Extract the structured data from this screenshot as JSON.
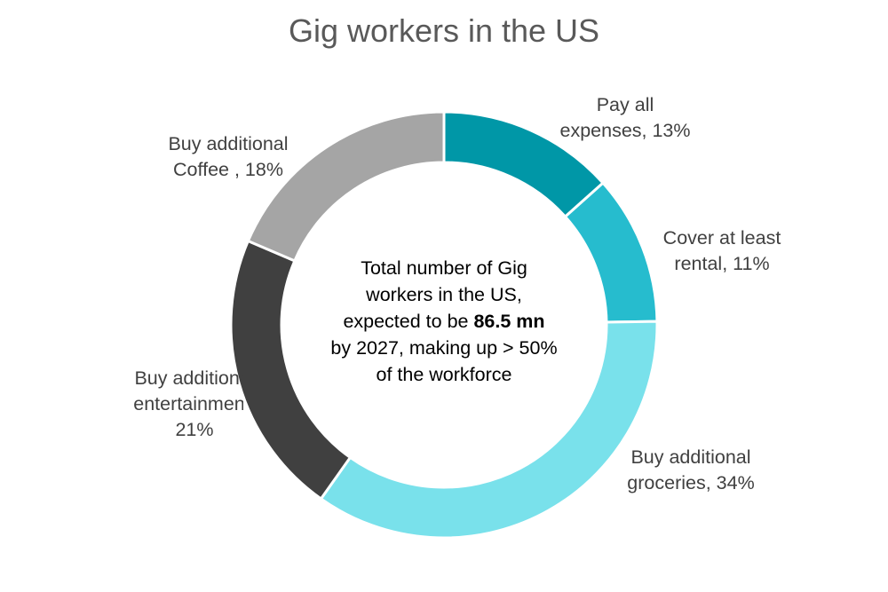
{
  "chart_data": {
    "type": "pie",
    "title": "Gig workers in the US",
    "categories": [
      "Pay all expenses",
      "Cover at least rental",
      "Buy additional groceries",
      "Buy additional entertainment",
      "Buy additional Coffee "
    ],
    "values": [
      13,
      11,
      34,
      21,
      18
    ],
    "colors": [
      "#0097A7",
      "#26BCCE",
      "#79E1EB",
      "#404040",
      "#A5A5A5"
    ],
    "labels": [
      {
        "line1": "Pay all",
        "line2": "expenses, 13%"
      },
      {
        "line1": "Cover at least",
        "line2": "rental, 11%"
      },
      {
        "line1": "Buy additional",
        "line2": "groceries, 34%"
      },
      {
        "line1": "Buy additional",
        "line2": "entertainment,",
        "line3": "21%"
      },
      {
        "line1": "Buy additional",
        "line2": "Coffee , 18%"
      }
    ],
    "legend": "none",
    "center_text": {
      "line1": "Total number of Gig",
      "line2": "workers in the US,",
      "line3_prefix": "expected to be ",
      "line3_bold": "86.5 mn",
      "line4": "by 2027, making up > 50%",
      "line5": "of the workforce"
    }
  }
}
